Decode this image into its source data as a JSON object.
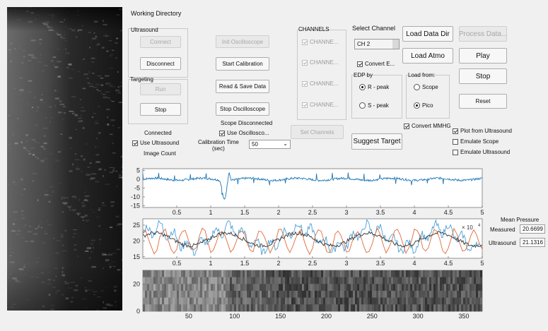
{
  "header": {
    "working_directory": "Working Directory"
  },
  "ultrasound": {
    "group_label": "Ultrasound",
    "connect_label": "Connect",
    "disconnect_label": "Disconnect",
    "status": "Connected",
    "use_checkbox_label": "Use Ultrasound",
    "image_count_label": "Image Count"
  },
  "targeting": {
    "group_label": "Targeting",
    "run_label": "Run",
    "stop_label": "Stop"
  },
  "oscilloscope": {
    "init_label": "Init Oscilloscope",
    "start_calibration_label": "Start Calibration",
    "read_save_label": "Read & Save Data",
    "stop_label": "Stop Oscilloscope",
    "status": "Scope Disconnected",
    "use_checkbox_label": "Use Oscillosco...",
    "calibration_time_label": "Calibration Time\n(sec)",
    "calibration_time_value": "50"
  },
  "channels": {
    "header": "CHANNELS",
    "items": [
      "CHANNE...",
      "CHANNE...",
      "CHANNE...",
      "CHANNE..."
    ],
    "set_channels_label": "Set Channels"
  },
  "select_channel": {
    "label": "Select Channel",
    "value": "CH 2",
    "convert_label": "Convert E..."
  },
  "edp": {
    "label": "EDP by",
    "options": [
      "R - peak",
      "S - peak"
    ],
    "selected": "R - peak"
  },
  "load_from": {
    "label": "Load from:",
    "options": [
      "Scope",
      "Pico"
    ],
    "selected": "Pico"
  },
  "actions": {
    "load_data_dir": "Load Data Dir",
    "process_data": "Process Data...",
    "load_atmo": "Load Atmo",
    "play": "Play",
    "stop": "Stop",
    "reset": "Reset",
    "suggest_target": "Suggest Target",
    "convert_mmhg": "Convert MMHG",
    "plot_from_ultrasound": "Plot from Ultrasound",
    "emulate_scope": "Emulate Scope",
    "emulate_ultrasound": "Emulate Ultrasound"
  },
  "mean_pressure": {
    "title": "Mean Pressure",
    "measured_label": "Measured",
    "measured_value": "20.6699",
    "ultrasound_label": "Ultrasound",
    "ultrasound_value": "21.1316"
  },
  "chart_data": [
    {
      "type": "line",
      "x_ticks": [
        "0.5",
        "1",
        "1.5",
        "2",
        "2.5",
        "3",
        "3.5",
        "4",
        "4.5",
        "5"
      ],
      "y_ticks": [
        "5",
        "0",
        "-5",
        "-10",
        "-15"
      ],
      "xlim": [
        0,
        5
      ],
      "ylim": [
        -16,
        6
      ],
      "series": [
        {
          "color": "#1f77b4"
        }
      ]
    },
    {
      "type": "line",
      "x_ticks": [
        "0.5",
        "1",
        "1.5",
        "2",
        "2.5",
        "3",
        "3.5",
        "4",
        "4.5",
        "5"
      ],
      "y_ticks": [
        "25",
        "20",
        "15"
      ],
      "exponent_label": "× 10",
      "exponent_power": "4",
      "xlim": [
        0,
        5
      ],
      "ylim": [
        14.5,
        27
      ],
      "series": [
        {
          "color": "#4a9fd6"
        },
        {
          "color": "#e06a3a"
        },
        {
          "color": "#333333"
        }
      ]
    },
    {
      "type": "heatmap",
      "x_ticks": [
        "50",
        "100",
        "150",
        "200",
        "250",
        "300",
        "350"
      ],
      "y_ticks": [
        "0",
        "20"
      ],
      "xlim": [
        0,
        370
      ],
      "ylim": [
        0,
        30
      ]
    }
  ]
}
